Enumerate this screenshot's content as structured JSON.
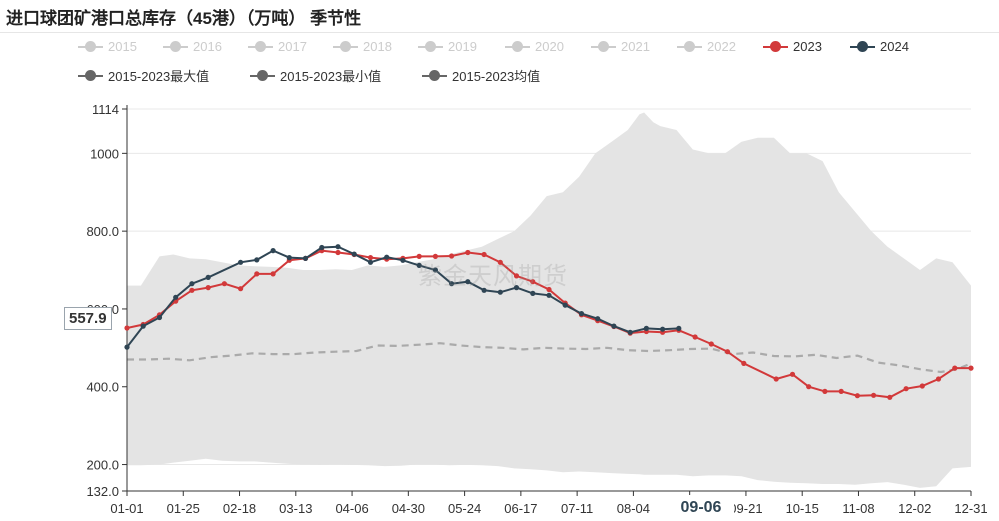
{
  "title": "进口球团矿港口总库存（45港）（万吨） 季节性",
  "watermark": "紫金天风期货",
  "y_pointer_label": "557.9",
  "x_pointer_label": "09-06",
  "legend": [
    {
      "label": "2015",
      "color": "#cccccc",
      "active": false
    },
    {
      "label": "2016",
      "color": "#cccccc",
      "active": false
    },
    {
      "label": "2017",
      "color": "#cccccc",
      "active": false
    },
    {
      "label": "2018",
      "color": "#cccccc",
      "active": false
    },
    {
      "label": "2019",
      "color": "#cccccc",
      "active": false
    },
    {
      "label": "2020",
      "color": "#cccccc",
      "active": false
    },
    {
      "label": "2021",
      "color": "#cccccc",
      "active": false
    },
    {
      "label": "2022",
      "color": "#cccccc",
      "active": false
    },
    {
      "label": "2023",
      "color": "#d2393a",
      "active": true
    },
    {
      "label": "2024",
      "color": "#2f4554",
      "active": true
    },
    {
      "label": "2015-2023最大值",
      "color": "#666666",
      "active": true
    },
    {
      "label": "2015-2023最小值",
      "color": "#666666",
      "active": true
    },
    {
      "label": "2015-2023均值",
      "color": "#666666",
      "active": true
    }
  ],
  "chart_data": {
    "type": "line",
    "x_ticks": [
      "01-01",
      "01-25",
      "02-18",
      "03-13",
      "04-06",
      "04-30",
      "05-24",
      "06-17",
      "07-11",
      "08-04",
      "08-28",
      "09-21",
      "10-15",
      "11-08",
      "12-02",
      "12-31"
    ],
    "y_ticks": [
      "132.0",
      "200.0",
      "400.0",
      "600.0",
      "800.0",
      "1000",
      "1114"
    ],
    "ylim": [
      132,
      1114
    ],
    "x_range_days": [
      0,
      364
    ],
    "band_days": [
      0,
      6,
      14,
      20,
      27,
      34,
      41,
      48,
      55,
      62,
      69,
      76,
      83,
      90,
      97,
      104,
      111,
      118,
      125,
      132,
      139,
      146,
      153,
      160,
      167,
      174,
      181,
      188,
      195,
      202,
      209,
      216,
      221,
      223,
      227,
      230,
      237,
      244,
      251,
      258,
      265,
      272,
      279,
      286,
      293,
      300,
      307,
      314,
      321,
      328,
      335,
      342,
      349,
      356,
      364
    ],
    "band_max": [
      660,
      660,
      735,
      740,
      730,
      728,
      720,
      712,
      710,
      708,
      706,
      700,
      700,
      702,
      700,
      712,
      708,
      712,
      720,
      728,
      740,
      750,
      760,
      780,
      800,
      840,
      890,
      900,
      940,
      1000,
      1030,
      1060,
      1100,
      1105,
      1080,
      1070,
      1060,
      1010,
      1000,
      1000,
      1030,
      1040,
      1040,
      1000,
      1000,
      980,
      900,
      850,
      800,
      760,
      730,
      700,
      730,
      720,
      660
    ],
    "band_min": [
      198,
      198,
      200,
      205,
      210,
      215,
      210,
      208,
      208,
      205,
      202,
      200,
      199,
      200,
      199,
      198,
      196,
      197,
      200,
      200,
      198,
      199,
      198,
      196,
      190,
      188,
      185,
      180,
      182,
      180,
      178,
      176,
      175,
      174,
      174,
      174,
      174,
      170,
      172,
      172,
      170,
      160,
      156,
      153,
      152,
      150,
      150,
      148,
      152,
      155,
      148,
      140,
      144,
      190,
      194
    ],
    "mean_days": [
      0,
      9,
      18,
      27,
      36,
      45,
      54,
      63,
      72,
      81,
      90,
      99,
      108,
      117,
      126,
      135,
      144,
      153,
      162,
      171,
      180,
      189,
      198,
      207,
      216,
      225,
      234,
      243,
      252,
      261,
      270,
      279,
      288,
      297,
      306,
      315,
      324,
      333,
      342,
      351,
      358,
      364
    ],
    "mean_values": [
      470,
      470,
      472,
      468,
      476,
      480,
      486,
      484,
      484,
      488,
      490,
      492,
      506,
      505,
      508,
      512,
      506,
      502,
      500,
      496,
      500,
      498,
      497,
      500,
      494,
      492,
      494,
      497,
      498,
      484,
      488,
      479,
      478,
      482,
      474,
      480,
      462,
      455,
      445,
      438,
      445,
      460
    ],
    "series": [
      {
        "name": "2023",
        "color": "#d2393a",
        "x_days": [
          0,
          7,
          14,
          21,
          28,
          35,
          42,
          49,
          56,
          63,
          70,
          77,
          84,
          91,
          98,
          105,
          112,
          119,
          126,
          133,
          140,
          147,
          154,
          161,
          168,
          175,
          182,
          189,
          196,
          203,
          210,
          217,
          224,
          231,
          238,
          245,
          252,
          259,
          266,
          280,
          287,
          294,
          301,
          308,
          315,
          322,
          329,
          336,
          343,
          350,
          357,
          364
        ],
        "values": [
          551,
          560,
          585,
          620,
          648,
          655,
          665,
          652,
          690,
          690,
          725,
          730,
          750,
          745,
          740,
          732,
          728,
          730,
          735,
          735,
          736,
          745,
          740,
          720,
          685,
          670,
          650,
          615,
          585,
          570,
          555,
          538,
          542,
          540,
          545,
          528,
          510,
          490,
          460,
          420,
          432,
          400,
          388,
          388,
          377,
          378,
          373,
          395,
          402,
          420,
          448,
          448
        ]
      },
      {
        "name": "2024",
        "color": "#2f4554",
        "x_days": [
          0,
          7,
          14,
          21,
          28,
          35,
          49,
          56,
          63,
          70,
          77,
          84,
          91,
          98,
          105,
          112,
          119,
          126,
          133,
          140,
          147,
          154,
          161,
          168,
          175,
          182,
          189,
          196,
          203,
          210,
          217,
          224,
          231,
          238
        ],
        "values": [
          502,
          556,
          578,
          630,
          665,
          681,
          720,
          726,
          750,
          732,
          730,
          758,
          760,
          741,
          720,
          733,
          725,
          712,
          700,
          665,
          670,
          648,
          643,
          655,
          640,
          635,
          610,
          588,
          575,
          556,
          540,
          550,
          548,
          550
        ]
      }
    ]
  }
}
